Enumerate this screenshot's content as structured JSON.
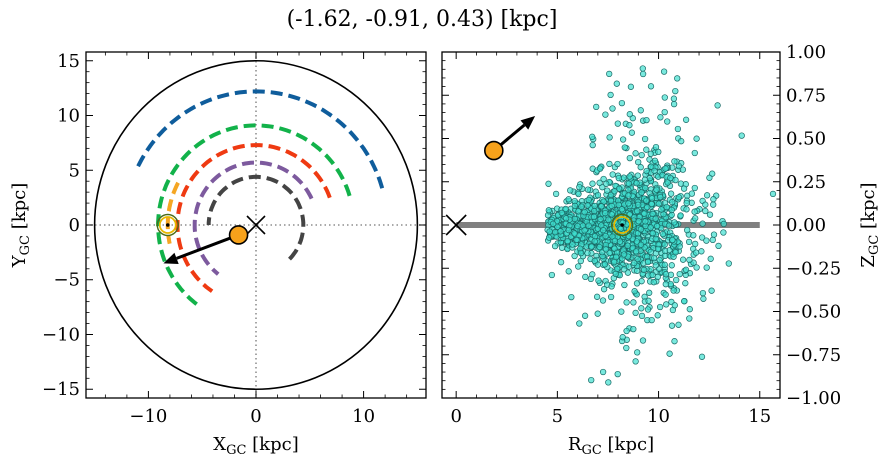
{
  "figure": {
    "title": "(-1.62, -0.91, 0.43) [kpc]"
  },
  "chart_data": [
    {
      "type": "scatter",
      "panel": "left",
      "xlabel": "X",
      "xlabel_sub": "GC",
      "xlabel_unit": " [kpc]",
      "ylabel": "Y",
      "ylabel_sub": "GC",
      "ylabel_unit": " [kpc]",
      "xlim": [
        -15.8,
        15.8
      ],
      "ylim": [
        -15.8,
        15.8
      ],
      "xticks": [
        -10,
        0,
        10
      ],
      "xtick_labels": [
        "−10",
        "0",
        "10"
      ],
      "yticks": [
        -15,
        -10,
        -5,
        0,
        5,
        10,
        15
      ],
      "ytick_labels": [
        "−15",
        "−10",
        "−5",
        "0",
        "5",
        "10",
        "15"
      ],
      "grid": false,
      "disk_boundary_radius": 15,
      "reference_lines": {
        "x": 0,
        "y": 0
      },
      "spiral_arcs": [
        {
          "color": "#0f5d9c",
          "radius": 12.2,
          "theta_start_deg": 16,
          "theta_end_deg": 154
        },
        {
          "color": "#12b24a",
          "radius": 9.1,
          "theta_start_deg": 17,
          "theta_end_deg": 236
        },
        {
          "color": "#f5a623",
          "radius": 8.2,
          "theta_start_deg": 152,
          "theta_end_deg": 192
        },
        {
          "color": "#ef3a12",
          "radius": 7.3,
          "theta_start_deg": 20,
          "theta_end_deg": 236
        },
        {
          "color": "#7d5a9e",
          "radius": 5.7,
          "theta_start_deg": 25,
          "theta_end_deg": 232
        },
        {
          "color": "#444444",
          "radius": 4.4,
          "theta_start_deg": -45,
          "theta_end_deg": 180
        }
      ],
      "sun": {
        "x": -8.2,
        "y": 0.0
      },
      "galactic_center": {
        "x": 0,
        "y": 0
      },
      "object": {
        "x": -1.62,
        "y": -0.91
      },
      "velocity_arrow": {
        "x_start": -1.62,
        "y_start": -0.91,
        "x_end": -8.6,
        "y_end": -3.5
      }
    },
    {
      "type": "scatter",
      "panel": "right",
      "xlabel": "R",
      "xlabel_sub": "GC",
      "xlabel_unit": " [kpc]",
      "ylabel": "Z",
      "ylabel_sub": "GC",
      "ylabel_unit": " [kpc]",
      "xlim": [
        -0.7,
        16.0
      ],
      "ylim": [
        -1.0,
        1.0
      ],
      "xticks": [
        0,
        5,
        10,
        15
      ],
      "xtick_labels": [
        "0",
        "5",
        "10",
        "15"
      ],
      "yticks": [
        -1.0,
        -0.75,
        -0.5,
        -0.25,
        0.0,
        0.25,
        0.5,
        0.75,
        1.0
      ],
      "ytick_labels": [
        "−1.00",
        "−0.75",
        "−0.50",
        "−0.25",
        "0.00",
        "0.25",
        "0.50",
        "0.75",
        "1.00"
      ],
      "grid": false,
      "disk_midplane": {
        "x_start": 0,
        "x_end": 15,
        "z": 0.0,
        "color": "#808080"
      },
      "stars": {
        "color": "#40e0d0",
        "edge_color": "#1a6a66",
        "center_R": 8.2,
        "center_Z": 0.0,
        "approximate_count": 1500
      },
      "sun": {
        "x": 8.2,
        "y": 0.0
      },
      "galactic_center": {
        "x": 0,
        "y": 0
      },
      "object": {
        "x": 1.86,
        "y": 0.43
      },
      "velocity_arrow": {
        "x_start": 1.86,
        "y_start": 0.43,
        "x_end": 3.9,
        "y_end": 0.63
      }
    }
  ]
}
